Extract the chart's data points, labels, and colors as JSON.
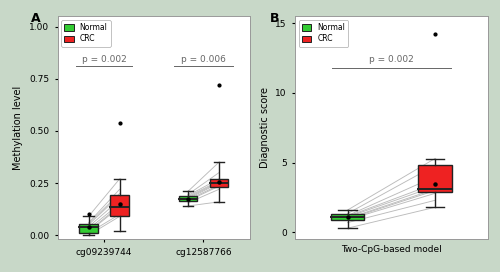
{
  "background_color": "#c8d8c8",
  "panel_bg": "#ffffff",
  "fig_width": 5.0,
  "fig_height": 2.72,
  "panel_A": {
    "label": "A",
    "ylabel": "Methylation level",
    "groups": [
      "cg09239744",
      "cg12587766"
    ],
    "pvalues": [
      "p = 0.002",
      "p = 0.006"
    ],
    "ylim": [
      -0.02,
      1.05
    ],
    "yticks": [
      0.0,
      0.25,
      0.5,
      0.75,
      1.0
    ],
    "normal_cg1": {
      "whisker_low": 0.0,
      "q1": 0.01,
      "median": 0.04,
      "q3": 0.055,
      "whisker_high": 0.09,
      "outliers": [
        0.1
      ],
      "mean": 0.04
    },
    "crc_cg1": {
      "whisker_low": 0.02,
      "q1": 0.09,
      "median": 0.135,
      "q3": 0.195,
      "whisker_high": 0.27,
      "outliers": [
        0.54
      ],
      "mean": 0.15
    },
    "normal_cg2": {
      "whisker_low": 0.14,
      "q1": 0.165,
      "median": 0.175,
      "q3": 0.19,
      "whisker_high": 0.21,
      "outliers": [],
      "mean": 0.175
    },
    "crc_cg2": {
      "whisker_low": 0.16,
      "q1": 0.23,
      "median": 0.25,
      "q3": 0.27,
      "whisker_high": 0.35,
      "outliers": [
        0.72
      ],
      "mean": 0.255
    },
    "paired_normal_cg1": [
      0.0,
      0.01,
      0.015,
      0.02,
      0.03,
      0.04,
      0.05,
      0.055,
      0.06,
      0.09
    ],
    "paired_crc_cg1": [
      0.09,
      0.1,
      0.135,
      0.14,
      0.15,
      0.17,
      0.19,
      0.2,
      0.22,
      0.27
    ],
    "paired_normal_cg2": [
      0.14,
      0.155,
      0.165,
      0.17,
      0.175,
      0.18,
      0.185,
      0.19,
      0.195,
      0.21
    ],
    "paired_crc_cg2": [
      0.16,
      0.22,
      0.235,
      0.24,
      0.25,
      0.255,
      0.26,
      0.27,
      0.3,
      0.35
    ]
  },
  "panel_B": {
    "label": "B",
    "ylabel": "Diagnostic score",
    "xlabel": "Two-CpG-based model",
    "pvalue": "p = 0.002",
    "ylim": [
      -0.5,
      15.5
    ],
    "yticks": [
      0,
      5,
      10,
      15
    ],
    "normal": {
      "whisker_low": 0.3,
      "q1": 0.9,
      "median": 1.1,
      "q3": 1.3,
      "whisker_high": 1.6,
      "outliers": [],
      "mean": 1.1
    },
    "crc": {
      "whisker_low": 1.8,
      "q1": 2.9,
      "median": 3.1,
      "q3": 4.8,
      "whisker_high": 5.3,
      "outliers": [
        14.2
      ],
      "mean": 3.5
    },
    "paired_normal": [
      0.3,
      0.7,
      0.9,
      0.95,
      1.0,
      1.1,
      1.15,
      1.2,
      1.35,
      1.6
    ],
    "paired_crc": [
      1.8,
      2.3,
      2.8,
      3.0,
      3.1,
      3.3,
      3.5,
      4.0,
      4.8,
      5.3
    ]
  },
  "normal_fill": "#33cc33",
  "crc_fill": "#ee2222",
  "box_edge_color": "#222222",
  "line_color": "#bbbbbb",
  "pval_color": "#666666",
  "pval_line_color": "#666666"
}
